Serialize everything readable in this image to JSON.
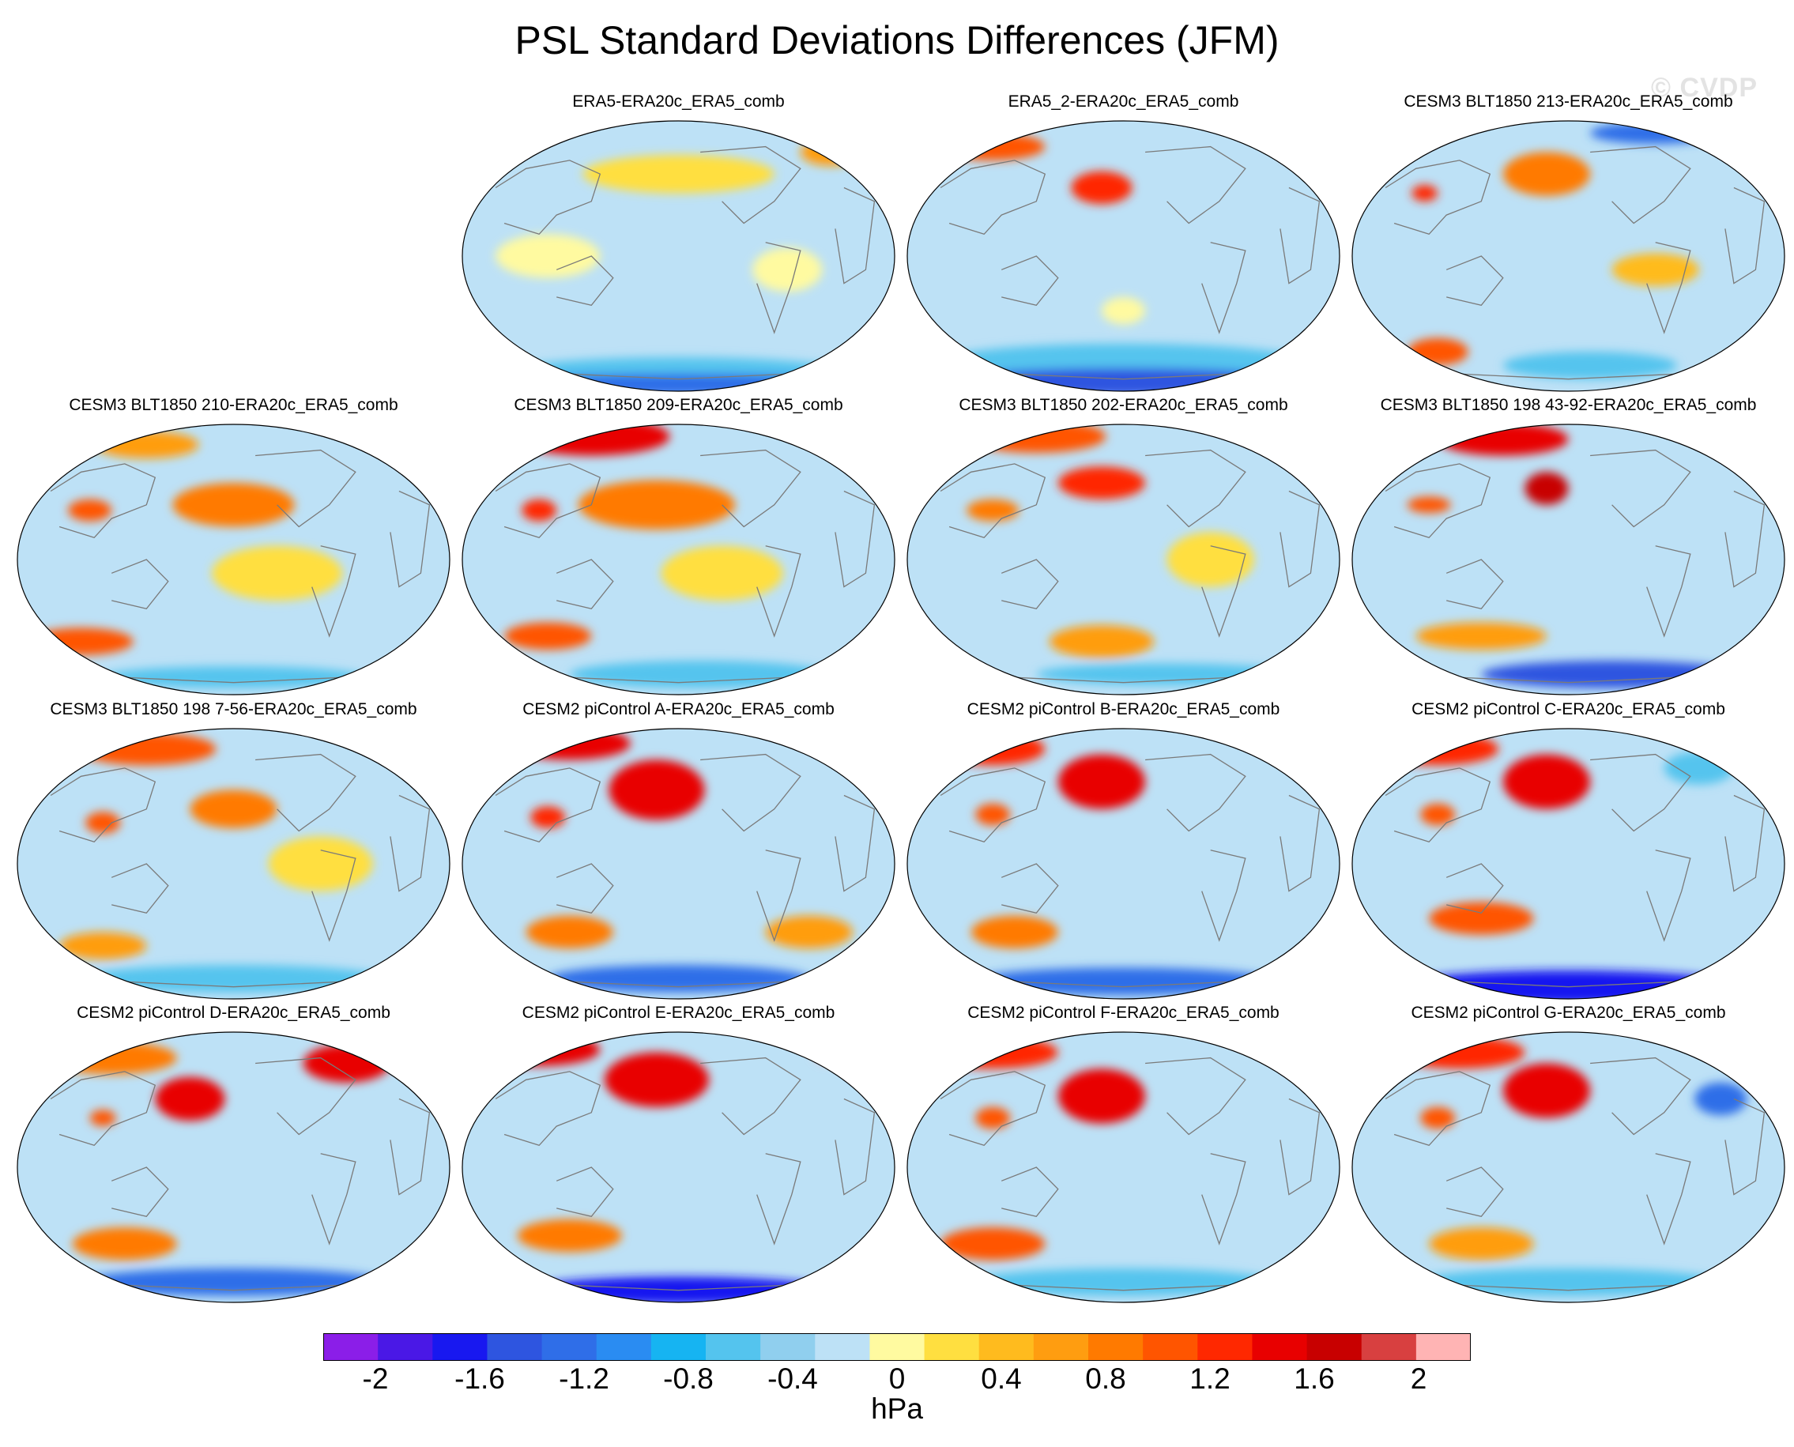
{
  "figure": {
    "title": "PSL Standard Deviations Differences (JFM)",
    "watermark": "© CVDP",
    "projection": "Robinson, Pacific-centered",
    "colorbar": {
      "units": "hPa",
      "levels": [
        -2.2,
        -2,
        -1.8,
        -1.6,
        -1.4,
        -1.2,
        -1,
        -0.8,
        -0.6,
        -0.4,
        -0.2,
        0,
        0.2,
        0.4,
        0.6,
        0.8,
        1,
        1.2,
        1.4,
        1.6,
        1.8,
        2,
        2.2
      ],
      "tick_labels": [
        "-2",
        "-1.6",
        "-1.2",
        "-0.8",
        "-0.4",
        "0",
        "0.4",
        "0.8",
        "1.2",
        "1.6",
        "2"
      ],
      "colors": [
        "#8b1ee8",
        "#4a18e6",
        "#1818f0",
        "#2e55e0",
        "#2f6ee8",
        "#2a8cf2",
        "#16b4f2",
        "#54c4ee",
        "#90cfee",
        "#bde1f6",
        "#fffaa0",
        "#ffdf40",
        "#ffbb1e",
        "#ff9d10",
        "#ff7a00",
        "#ff5500",
        "#ff2800",
        "#e80000",
        "#c80000",
        "#d84040",
        "#ffb4b4"
      ]
    }
  },
  "panels": [
    {
      "title": "ERA5-ERA20c_ERA5_comb",
      "blobs": [
        [
          "#ffdf40",
          0.5,
          0.2,
          0.22,
          0.07
        ],
        [
          "#ff9d10",
          0.85,
          0.12,
          0.07,
          0.05
        ],
        [
          "#54c4ee",
          0.5,
          0.93,
          0.4,
          0.06
        ],
        [
          "#2f6ee8",
          0.5,
          0.97,
          0.45,
          0.04
        ],
        [
          "#fffaa0",
          0.2,
          0.5,
          0.12,
          0.08
        ],
        [
          "#fffaa0",
          0.75,
          0.55,
          0.08,
          0.08
        ]
      ]
    },
    {
      "title": "ERA5_2-ERA20c_ERA5_comb",
      "blobs": [
        [
          "#ff2800",
          0.45,
          0.25,
          0.07,
          0.06
        ],
        [
          "#ff5500",
          0.2,
          0.1,
          0.12,
          0.05
        ],
        [
          "#c80000",
          0.9,
          0.1,
          0.04,
          0.05
        ],
        [
          "#54c4ee",
          0.5,
          0.9,
          0.45,
          0.08
        ],
        [
          "#2e55e0",
          0.5,
          0.96,
          0.42,
          0.05
        ],
        [
          "#fffaa0",
          0.5,
          0.7,
          0.05,
          0.05
        ]
      ]
    },
    {
      "title": "CESM3 BLT1850 213-ERA20c_ERA5_comb",
      "blobs": [
        [
          "#ff7a00",
          0.45,
          0.2,
          0.1,
          0.08
        ],
        [
          "#ff2800",
          0.17,
          0.27,
          0.03,
          0.03
        ],
        [
          "#ff5500",
          0.2,
          0.85,
          0.07,
          0.05
        ],
        [
          "#ffbb1e",
          0.7,
          0.55,
          0.1,
          0.06
        ],
        [
          "#54c4ee",
          0.55,
          0.9,
          0.2,
          0.05
        ],
        [
          "#2f6ee8",
          0.7,
          0.05,
          0.15,
          0.04
        ]
      ]
    },
    {
      "title": "CESM3 BLT1850 210-ERA20c_ERA5_comb",
      "blobs": [
        [
          "#ff7a00",
          0.5,
          0.3,
          0.14,
          0.08
        ],
        [
          "#ff5500",
          0.17,
          0.32,
          0.05,
          0.04
        ],
        [
          "#ff5500",
          0.15,
          0.8,
          0.12,
          0.05
        ],
        [
          "#ff9d10",
          0.3,
          0.08,
          0.12,
          0.05
        ],
        [
          "#ffdf40",
          0.6,
          0.55,
          0.15,
          0.1
        ],
        [
          "#54c4ee",
          0.5,
          0.93,
          0.3,
          0.04
        ]
      ]
    },
    {
      "title": "CESM3 BLT1850 209-ERA20c_ERA5_comb",
      "blobs": [
        [
          "#ffb4b4",
          0.35,
          0.05,
          0.08,
          0.05
        ],
        [
          "#e80000",
          0.3,
          0.05,
          0.18,
          0.07
        ],
        [
          "#ff7a00",
          0.45,
          0.3,
          0.18,
          0.09
        ],
        [
          "#ff2800",
          0.18,
          0.32,
          0.04,
          0.04
        ],
        [
          "#ff5500",
          0.2,
          0.78,
          0.1,
          0.05
        ],
        [
          "#ffdf40",
          0.6,
          0.55,
          0.14,
          0.1
        ],
        [
          "#54c4ee",
          0.55,
          0.92,
          0.3,
          0.05
        ]
      ]
    },
    {
      "title": "CESM3 BLT1850 202-ERA20c_ERA5_comb",
      "blobs": [
        [
          "#ff5500",
          0.3,
          0.05,
          0.16,
          0.06
        ],
        [
          "#ff2800",
          0.45,
          0.22,
          0.1,
          0.06
        ],
        [
          "#ff7a00",
          0.2,
          0.32,
          0.06,
          0.04
        ],
        [
          "#ff9d10",
          0.45,
          0.8,
          0.12,
          0.06
        ],
        [
          "#ffdf40",
          0.7,
          0.5,
          0.1,
          0.1
        ],
        [
          "#54c4ee",
          0.6,
          0.92,
          0.3,
          0.04
        ]
      ]
    },
    {
      "title": "CESM3 BLT1850 198 43-92-ERA20c_ERA5_comb",
      "blobs": [
        [
          "#ffb4b4",
          0.35,
          0.05,
          0.06,
          0.04
        ],
        [
          "#e80000",
          0.35,
          0.06,
          0.15,
          0.06
        ],
        [
          "#ffb4b4",
          0.45,
          0.24,
          0.03,
          0.04
        ],
        [
          "#c80000",
          0.45,
          0.24,
          0.05,
          0.06
        ],
        [
          "#ff5500",
          0.18,
          0.3,
          0.05,
          0.03
        ],
        [
          "#ff9d10",
          0.3,
          0.78,
          0.15,
          0.05
        ],
        [
          "#2e55e0",
          0.6,
          0.92,
          0.3,
          0.05
        ]
      ]
    },
    {
      "title": "CESM3 BLT1850 198 7-56-ERA20c_ERA5_comb",
      "blobs": [
        [
          "#ff5500",
          0.3,
          0.08,
          0.16,
          0.06
        ],
        [
          "#ff7a00",
          0.5,
          0.3,
          0.1,
          0.07
        ],
        [
          "#ff5500",
          0.2,
          0.35,
          0.04,
          0.04
        ],
        [
          "#ff9d10",
          0.2,
          0.8,
          0.1,
          0.05
        ],
        [
          "#ffdf40",
          0.7,
          0.5,
          0.12,
          0.1
        ],
        [
          "#54c4ee",
          0.5,
          0.92,
          0.35,
          0.05
        ]
      ]
    },
    {
      "title": "CESM2 piControl A-ERA20c_ERA5_comb",
      "blobs": [
        [
          "#ffb4b4",
          0.45,
          0.25,
          0.06,
          0.07
        ],
        [
          "#e80000",
          0.45,
          0.23,
          0.11,
          0.11
        ],
        [
          "#ffb4b4",
          0.2,
          0.06,
          0.05,
          0.04
        ],
        [
          "#e80000",
          0.25,
          0.06,
          0.14,
          0.06
        ],
        [
          "#ff2800",
          0.2,
          0.33,
          0.04,
          0.04
        ],
        [
          "#ff7a00",
          0.25,
          0.75,
          0.1,
          0.06
        ],
        [
          "#ff9d10",
          0.8,
          0.75,
          0.1,
          0.06
        ],
        [
          "#2f6ee8",
          0.5,
          0.92,
          0.3,
          0.05
        ]
      ]
    },
    {
      "title": "CESM2 piControl B-ERA20c_ERA5_comb",
      "blobs": [
        [
          "#ffb4b4",
          0.45,
          0.22,
          0.05,
          0.05
        ],
        [
          "#e80000",
          0.45,
          0.2,
          0.1,
          0.1
        ],
        [
          "#ff2800",
          0.2,
          0.08,
          0.12,
          0.06
        ],
        [
          "#ffb4b4",
          0.9,
          0.08,
          0.03,
          0.04
        ],
        [
          "#ff5500",
          0.2,
          0.32,
          0.04,
          0.04
        ],
        [
          "#ff7a00",
          0.25,
          0.75,
          0.1,
          0.06
        ],
        [
          "#2f6ee8",
          0.5,
          0.93,
          0.35,
          0.05
        ]
      ]
    },
    {
      "title": "CESM2 piControl C-ERA20c_ERA5_comb",
      "blobs": [
        [
          "#ffb4b4",
          0.45,
          0.2,
          0.05,
          0.06
        ],
        [
          "#e80000",
          0.45,
          0.2,
          0.1,
          0.1
        ],
        [
          "#ff2800",
          0.2,
          0.08,
          0.14,
          0.06
        ],
        [
          "#ff5500",
          0.2,
          0.32,
          0.04,
          0.04
        ],
        [
          "#ff5500",
          0.3,
          0.7,
          0.12,
          0.06
        ],
        [
          "#1818f0",
          0.5,
          0.95,
          0.4,
          0.06
        ],
        [
          "#54c4ee",
          0.8,
          0.15,
          0.08,
          0.06
        ]
      ]
    },
    {
      "title": "CESM2 piControl D-ERA20c_ERA5_comb",
      "blobs": [
        [
          "#ffb4b4",
          0.4,
          0.25,
          0.04,
          0.04
        ],
        [
          "#e80000",
          0.4,
          0.25,
          0.08,
          0.08
        ],
        [
          "#ffb4b4",
          0.78,
          0.12,
          0.06,
          0.05
        ],
        [
          "#e80000",
          0.76,
          0.12,
          0.1,
          0.07
        ],
        [
          "#ff7a00",
          0.22,
          0.1,
          0.15,
          0.06
        ],
        [
          "#ff5500",
          0.2,
          0.32,
          0.03,
          0.03
        ],
        [
          "#ff7a00",
          0.25,
          0.78,
          0.12,
          0.06
        ],
        [
          "#2f6ee8",
          0.5,
          0.92,
          0.35,
          0.05
        ]
      ]
    },
    {
      "title": "CESM2 piControl E-ERA20c_ERA5_comb",
      "blobs": [
        [
          "#ffb4b4",
          0.45,
          0.18,
          0.04,
          0.06
        ],
        [
          "#e80000",
          0.45,
          0.18,
          0.12,
          0.1
        ],
        [
          "#ffb4b4",
          0.2,
          0.06,
          0.06,
          0.04
        ],
        [
          "#e80000",
          0.18,
          0.07,
          0.14,
          0.06
        ],
        [
          "#ffb4b4",
          0.85,
          0.08,
          0.04,
          0.04
        ],
        [
          "#ff7a00",
          0.25,
          0.75,
          0.12,
          0.06
        ],
        [
          "#1818f0",
          0.5,
          0.95,
          0.35,
          0.05
        ]
      ]
    },
    {
      "title": "CESM2 piControl F-ERA20c_ERA5_comb",
      "blobs": [
        [
          "#ffb4b4",
          0.45,
          0.25,
          0.05,
          0.05
        ],
        [
          "#e80000",
          0.45,
          0.24,
          0.1,
          0.1
        ],
        [
          "#ff2800",
          0.2,
          0.08,
          0.15,
          0.06
        ],
        [
          "#ff5500",
          0.2,
          0.32,
          0.04,
          0.04
        ],
        [
          "#ff5500",
          0.2,
          0.78,
          0.12,
          0.06
        ],
        [
          "#54c4ee",
          0.5,
          0.92,
          0.35,
          0.05
        ]
      ]
    },
    {
      "title": "CESM2 piControl G-ERA20c_ERA5_comb",
      "blobs": [
        [
          "#ffb4b4",
          0.45,
          0.22,
          0.05,
          0.05
        ],
        [
          "#e80000",
          0.45,
          0.22,
          0.1,
          0.1
        ],
        [
          "#ff2800",
          0.25,
          0.08,
          0.15,
          0.06
        ],
        [
          "#ff5500",
          0.2,
          0.32,
          0.04,
          0.04
        ],
        [
          "#ff9d10",
          0.3,
          0.78,
          0.12,
          0.06
        ],
        [
          "#2f6ee8",
          0.85,
          0.25,
          0.06,
          0.06
        ],
        [
          "#54c4ee",
          0.5,
          0.92,
          0.35,
          0.05
        ]
      ]
    }
  ]
}
